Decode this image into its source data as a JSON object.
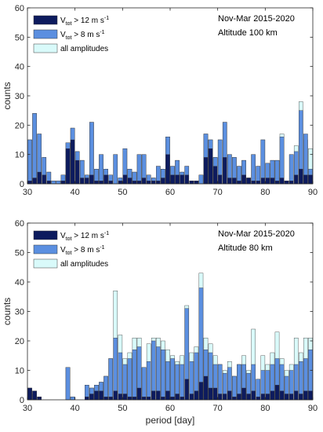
{
  "colors": {
    "high": "#0d1b5e",
    "mid": "#5b8fe0",
    "all": "#d9fafa",
    "edge": "#3a3a3a"
  },
  "chart_data": [
    {
      "type": "bar",
      "stacked_overlay": true,
      "annotation_lines": [
        "Nov-Mar 2015-2020",
        "Altitude 100 km"
      ],
      "legend": {
        "placement": "top-left",
        "entries": [
          {
            "key": "high",
            "prefix": "V",
            "sub": "tot",
            "rest": " > 12 m s",
            "sup": "-1"
          },
          {
            "key": "mid",
            "prefix": "V",
            "sub": "tot",
            "rest": " > 8 m s",
            "sup": "-1"
          },
          {
            "key": "all",
            "prefix": "",
            "sub": "",
            "rest": "all amplitudes",
            "sup": ""
          }
        ]
      },
      "xlabel": "",
      "ylabel": "counts",
      "xlim": [
        30,
        90
      ],
      "ylim": [
        0,
        60
      ],
      "xticks": [
        30,
        40,
        50,
        60,
        70,
        80,
        90
      ],
      "yticks": [
        0,
        10,
        20,
        30,
        40,
        50,
        60
      ],
      "x": [
        30.5,
        31.5,
        32.5,
        33.5,
        34.5,
        35.5,
        36.5,
        37.5,
        38.5,
        39.5,
        40.5,
        41.5,
        42.5,
        43.5,
        44.5,
        45.5,
        46.5,
        47.5,
        48.5,
        49.5,
        50.5,
        51.5,
        52.5,
        53.5,
        54.5,
        55.5,
        56.5,
        57.5,
        58.5,
        59.5,
        60.5,
        61.5,
        62.5,
        63.5,
        64.5,
        65.5,
        66.5,
        67.5,
        68.5,
        69.5,
        70.5,
        71.5,
        72.5,
        73.5,
        74.5,
        75.5,
        76.5,
        77.5,
        78.5,
        79.5,
        80.5,
        81.5,
        82.5,
        83.5,
        84.5,
        85.5,
        86.5,
        87.5,
        88.5,
        89.5
      ],
      "series": [
        {
          "key": "all",
          "name": "all amplitudes",
          "values": [
            15,
            24,
            17,
            9,
            4,
            1,
            1,
            3,
            14,
            19,
            11,
            8,
            3,
            21,
            5,
            10,
            5,
            3,
            10,
            2,
            12,
            5,
            4,
            10,
            10,
            3,
            2,
            6,
            5,
            16,
            6,
            8,
            4,
            6,
            1,
            1,
            3,
            17,
            15,
            9,
            15,
            21,
            10,
            9,
            6,
            8,
            2,
            10,
            6,
            15,
            7,
            8,
            8,
            17,
            1,
            10,
            13,
            28,
            15,
            12
          ]
        },
        {
          "key": "mid",
          "name": "Vtot > 8 m s-1",
          "values": [
            15,
            24,
            17,
            9,
            4,
            1,
            1,
            3,
            14,
            19,
            11,
            8,
            3,
            21,
            5,
            10,
            5,
            3,
            10,
            2,
            12,
            5,
            4,
            10,
            10,
            3,
            2,
            6,
            5,
            16,
            6,
            8,
            4,
            6,
            1,
            1,
            3,
            17,
            15,
            9,
            15,
            21,
            10,
            9,
            6,
            8,
            2,
            10,
            6,
            15,
            7,
            8,
            8,
            16,
            1,
            10,
            11,
            25,
            17,
            5
          ]
        },
        {
          "key": "high",
          "name": "Vtot > 12 m s-1",
          "values": [
            1,
            2,
            4,
            3,
            1,
            0,
            0,
            1,
            12,
            15,
            8,
            2,
            2,
            3,
            1,
            1,
            3,
            1,
            0,
            1,
            3,
            2,
            1,
            1,
            2,
            1,
            1,
            1,
            2,
            10,
            3,
            3,
            3,
            3,
            1,
            1,
            0,
            9,
            12,
            6,
            3,
            9,
            2,
            2,
            1,
            3,
            2,
            1,
            1,
            2,
            2,
            2,
            1,
            2,
            1,
            1,
            3,
            5,
            3,
            3
          ]
        }
      ]
    },
    {
      "type": "bar",
      "stacked_overlay": true,
      "annotation_lines": [
        "Nov-Mar 2015-2020",
        "Altitude 80 km"
      ],
      "legend": {
        "placement": "top-left",
        "entries": [
          {
            "key": "high",
            "prefix": "V",
            "sub": "tot",
            "rest": " > 12 m s",
            "sup": "-1"
          },
          {
            "key": "mid",
            "prefix": "V",
            "sub": "tot",
            "rest": " > 8 m s",
            "sup": "-1"
          },
          {
            "key": "all",
            "prefix": "",
            "sub": "",
            "rest": "all amplitudes",
            "sup": ""
          }
        ]
      },
      "xlabel": "period [day]",
      "ylabel": "counts",
      "xlim": [
        30,
        90
      ],
      "ylim": [
        0,
        60
      ],
      "xticks": [
        30,
        40,
        50,
        60,
        70,
        80,
        90
      ],
      "yticks": [
        0,
        10,
        20,
        30,
        40,
        50,
        60
      ],
      "x": [
        30.5,
        31.5,
        32.5,
        33.5,
        34.5,
        35.5,
        36.5,
        37.5,
        38.5,
        39.5,
        40.5,
        41.5,
        42.5,
        43.5,
        44.5,
        45.5,
        46.5,
        47.5,
        48.5,
        49.5,
        50.5,
        51.5,
        52.5,
        53.5,
        54.5,
        55.5,
        56.5,
        57.5,
        58.5,
        59.5,
        60.5,
        61.5,
        62.5,
        63.5,
        64.5,
        65.5,
        66.5,
        67.5,
        68.5,
        69.5,
        70.5,
        71.5,
        72.5,
        73.5,
        74.5,
        75.5,
        76.5,
        77.5,
        78.5,
        79.5,
        80.5,
        81.5,
        82.5,
        83.5,
        84.5,
        85.5,
        86.5,
        87.5,
        88.5,
        89.5
      ],
      "series": [
        {
          "key": "all",
          "name": "all amplitudes",
          "values": [
            4,
            3,
            1,
            0,
            0,
            0,
            0,
            0,
            11,
            1,
            0,
            0,
            5,
            4,
            5,
            6,
            8,
            14,
            37,
            22,
            14,
            16,
            21,
            21,
            11,
            19,
            21,
            21,
            20,
            17,
            15,
            13,
            15,
            32,
            16,
            18,
            43,
            21,
            19,
            15,
            12,
            10,
            13,
            8,
            12,
            15,
            10,
            24,
            7,
            15,
            12,
            16,
            23,
            14,
            10,
            12,
            21,
            16,
            21,
            21
          ]
        },
        {
          "key": "mid",
          "name": "Vtot > 8 m s-1",
          "values": [
            3,
            2,
            1,
            0,
            0,
            0,
            0,
            0,
            11,
            1,
            0,
            0,
            5,
            4,
            5,
            6,
            8,
            14,
            21,
            16,
            12,
            14,
            17,
            18,
            11,
            13,
            20,
            18,
            17,
            13,
            14,
            12,
            12,
            31,
            13,
            16,
            38,
            17,
            16,
            12,
            12,
            9,
            11,
            8,
            12,
            12,
            9,
            12,
            7,
            10,
            10,
            12,
            14,
            12,
            8,
            10,
            12,
            13,
            14,
            17
          ]
        },
        {
          "key": "high",
          "name": "Vtot > 12 m s-1",
          "values": [
            4,
            3,
            1,
            0,
            0,
            0,
            0,
            0,
            0,
            0,
            0,
            0,
            1,
            2,
            3,
            3,
            1,
            1,
            3,
            2,
            2,
            1,
            1,
            4,
            1,
            1,
            3,
            3,
            1,
            3,
            1,
            2,
            1,
            7,
            2,
            3,
            6,
            8,
            4,
            4,
            2,
            2,
            3,
            1,
            2,
            4,
            2,
            3,
            1,
            2,
            2,
            3,
            5,
            3,
            2,
            2,
            3,
            2,
            3,
            3
          ]
        }
      ]
    }
  ]
}
